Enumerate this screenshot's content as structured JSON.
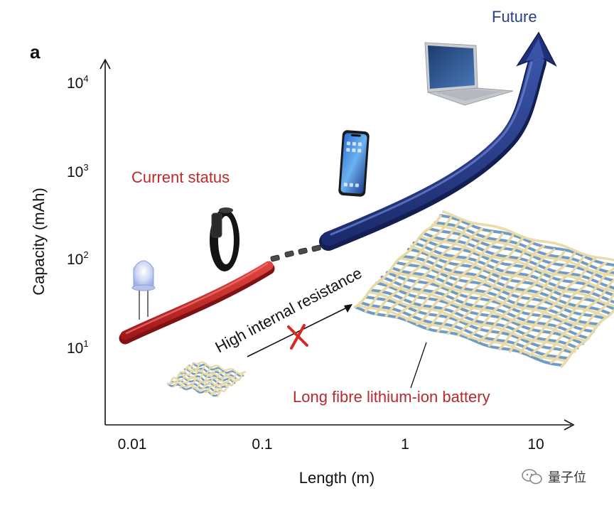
{
  "panel_label": "a",
  "axes": {
    "y_label": "Capacity (mAh)",
    "x_label": "Length (m)",
    "y_ticks": [
      {
        "base": "10",
        "exp": "4"
      },
      {
        "base": "10",
        "exp": "3"
      },
      {
        "base": "10",
        "exp": "2"
      },
      {
        "base": "10",
        "exp": "1"
      }
    ],
    "x_ticks": [
      "0.01",
      "0.1",
      "1",
      "10"
    ]
  },
  "labels": {
    "current_status": "Current status",
    "future": "Future",
    "high_resistance": "High internal resistance",
    "long_fibre": "Long fibre lithium-ion battery"
  },
  "icons": [
    "led-icon",
    "smart-band-icon",
    "smartphone-icon",
    "laptop-icon",
    "woven-fabric-icon",
    "small-fabric-icon",
    "cross-mark-icon"
  ],
  "colors": {
    "current": "#c0282a",
    "future": "#2a3f8c",
    "long_fibre_label": "#b52a2f",
    "fibre_yellow": "#e9d9a6",
    "fibre_blue": "#6f9cc6"
  },
  "watermark": "量子位"
}
